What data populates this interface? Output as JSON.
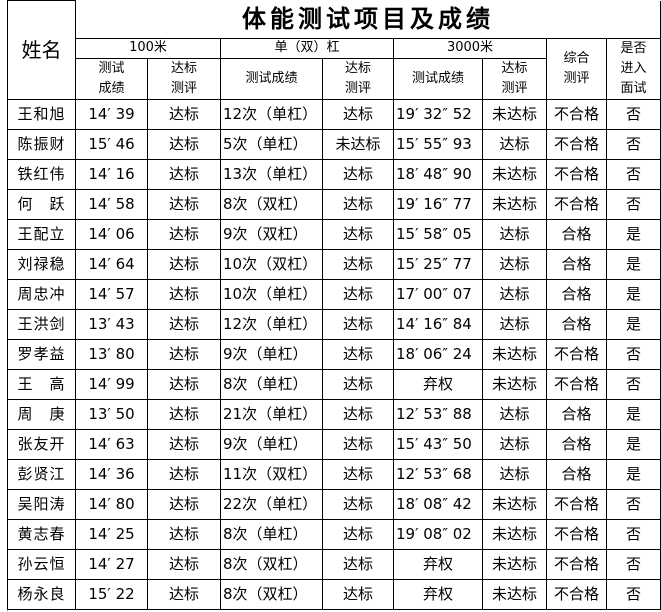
{
  "title": "体能测试项目及成绩",
  "headers": {
    "name": "姓名",
    "run100": "100米",
    "bar": "单（双）杠",
    "run3000": "3000米",
    "overall": "综合测评",
    "interview": "是否进入面试",
    "score": "测试成绩",
    "eval": "达标测评"
  },
  "rows": [
    [
      "王和旭",
      "14′ 39",
      "达标",
      "12次（单杠）",
      "达标",
      "19′ 32″ 52",
      "未达标",
      "不合格",
      "否"
    ],
    [
      "陈振财",
      "15′ 46",
      "达标",
      "5次（单杠）",
      "未达标",
      "15′ 55″ 93",
      "达标",
      "不合格",
      "否"
    ],
    [
      "铁红伟",
      "14′ 16",
      "达标",
      "13次（单杠）",
      "达标",
      "18′ 48″ 90",
      "未达标",
      "不合格",
      "否"
    ],
    [
      "何　跃",
      "14′ 58",
      "达标",
      "8次（双杠）",
      "达标",
      "19′ 16″ 77",
      "未达标",
      "不合格",
      "否"
    ],
    [
      "王配立",
      "14′ 06",
      "达标",
      "9次（双杠）",
      "达标",
      "15′ 58″ 05",
      "达标",
      "合格",
      "是"
    ],
    [
      "刘禄稳",
      "14′ 64",
      "达标",
      "10次（双杠）",
      "达标",
      "15′ 25″ 77",
      "达标",
      "合格",
      "是"
    ],
    [
      "周忠冲",
      "14′ 57",
      "达标",
      "10次（单杠）",
      "达标",
      "17′ 00″ 07",
      "达标",
      "合格",
      "是"
    ],
    [
      "王洪剑",
      "13′ 43",
      "达标",
      "12次（单杠）",
      "达标",
      "14′ 16″ 84",
      "达标",
      "合格",
      "是"
    ],
    [
      "罗孝益",
      "13′ 80",
      "达标",
      "9次（单杠）",
      "达标",
      "18′ 06″ 24",
      "未达标",
      "不合格",
      "否"
    ],
    [
      "王　高",
      "14′ 99",
      "达标",
      "8次（单杠）",
      "达标",
      "弃权",
      "未达标",
      "不合格",
      "否"
    ],
    [
      "周　庚",
      "13′ 50",
      "达标",
      "21次（单杠）",
      "达标",
      "12′ 53″ 88",
      "达标",
      "合格",
      "是"
    ],
    [
      "张友开",
      "14′ 63",
      "达标",
      "9次（单杠）",
      "达标",
      "15′ 43″ 50",
      "达标",
      "合格",
      "是"
    ],
    [
      "彭贤江",
      "14′ 36",
      "达标",
      "11次（双杠）",
      "达标",
      "12′ 53″ 68",
      "达标",
      "合格",
      "是"
    ],
    [
      "吴阳涛",
      "14′ 80",
      "达标",
      "22次（单杠）",
      "达标",
      "18′ 08″ 42",
      "未达标",
      "不合格",
      "否"
    ],
    [
      "黄志春",
      "14′ 25",
      "达标",
      "8次（单杠）",
      "达标",
      "19′ 08″ 02",
      "未达标",
      "不合格",
      "否"
    ],
    [
      "孙云恒",
      "14′ 27",
      "达标",
      "8次（双杠）",
      "达标",
      "弃权",
      "未达标",
      "不合格",
      "否"
    ],
    [
      "杨永良",
      "15′ 22",
      "达标",
      "8次（双杠）",
      "达标",
      "弃权",
      "未达标",
      "不合格",
      "否"
    ]
  ]
}
